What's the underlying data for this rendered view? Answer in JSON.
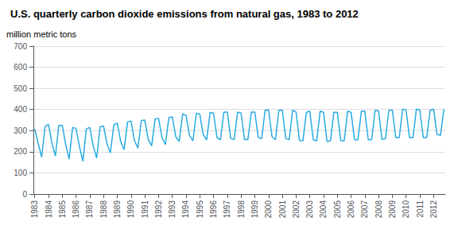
{
  "chart_data": {
    "type": "line",
    "title": "U.S. quarterly carbon dioxide emissions from natural gas, 1983 to 2012",
    "ylabel": "million metric tons",
    "color": "#29ABE2",
    "x": [
      1983,
      1983.25,
      1983.5,
      1983.75,
      1984,
      1984.25,
      1984.5,
      1984.75,
      1985,
      1985.25,
      1985.5,
      1985.75,
      1986,
      1986.25,
      1986.5,
      1986.75,
      1987,
      1987.25,
      1987.5,
      1987.75,
      1988,
      1988.25,
      1988.5,
      1988.75,
      1989,
      1989.25,
      1989.5,
      1989.75,
      1990,
      1990.25,
      1990.5,
      1990.75,
      1991,
      1991.25,
      1991.5,
      1991.75,
      1992,
      1992.25,
      1992.5,
      1992.75,
      1993,
      1993.25,
      1993.5,
      1993.75,
      1994,
      1994.25,
      1994.5,
      1994.75,
      1995,
      1995.25,
      1995.5,
      1995.75,
      1996,
      1996.25,
      1996.5,
      1996.75,
      1997,
      1997.25,
      1997.5,
      1997.75,
      1998,
      1998.25,
      1998.5,
      1998.75,
      1999,
      1999.25,
      1999.5,
      1999.75,
      2000,
      2000.25,
      2000.5,
      2000.75,
      2001,
      2001.25,
      2001.5,
      2001.75,
      2002,
      2002.25,
      2002.5,
      2002.75,
      2003,
      2003.25,
      2003.5,
      2003.75,
      2004,
      2004.25,
      2004.5,
      2004.75,
      2005,
      2005.25,
      2005.5,
      2005.75,
      2006,
      2006.25,
      2006.5,
      2006.75,
      2007,
      2007.25,
      2007.5,
      2007.75,
      2008,
      2008.25,
      2008.5,
      2008.75,
      2009,
      2009.25,
      2009.5,
      2009.75,
      2010,
      2010.25,
      2010.5,
      2010.75,
      2011,
      2011.25,
      2011.5,
      2011.75,
      2012,
      2012.25,
      2012.5,
      2012.75
    ],
    "values": [
      308,
      240,
      175,
      320,
      330,
      240,
      180,
      325,
      325,
      235,
      165,
      315,
      310,
      225,
      155,
      308,
      315,
      228,
      170,
      318,
      322,
      238,
      195,
      328,
      335,
      248,
      210,
      342,
      345,
      252,
      218,
      348,
      350,
      258,
      228,
      355,
      358,
      268,
      235,
      362,
      365,
      272,
      248,
      378,
      372,
      278,
      252,
      382,
      378,
      282,
      256,
      387,
      382,
      268,
      256,
      388,
      388,
      263,
      258,
      388,
      383,
      258,
      258,
      388,
      388,
      268,
      262,
      397,
      398,
      272,
      257,
      397,
      398,
      263,
      257,
      397,
      388,
      253,
      252,
      387,
      392,
      257,
      252,
      392,
      387,
      248,
      252,
      387,
      387,
      252,
      252,
      392,
      387,
      257,
      257,
      392,
      392,
      257,
      257,
      397,
      392,
      258,
      262,
      397,
      397,
      267,
      267,
      402,
      397,
      267,
      267,
      402,
      397,
      267,
      267,
      397,
      402,
      282,
      277,
      402
    ],
    "xlim": [
      1982.9,
      2012.85
    ],
    "xticks": [
      1983,
      1984,
      1985,
      1986,
      1987,
      1988,
      1989,
      1990,
      1991,
      1992,
      1993,
      1994,
      1995,
      1996,
      1997,
      1998,
      1999,
      2000,
      2001,
      2002,
      2003,
      2004,
      2005,
      2006,
      2007,
      2008,
      2009,
      2010,
      2011,
      2012
    ],
    "ylim": [
      0,
      700
    ],
    "yticks": [
      0,
      100,
      200,
      300,
      400,
      500,
      600,
      700
    ],
    "grid": true
  }
}
